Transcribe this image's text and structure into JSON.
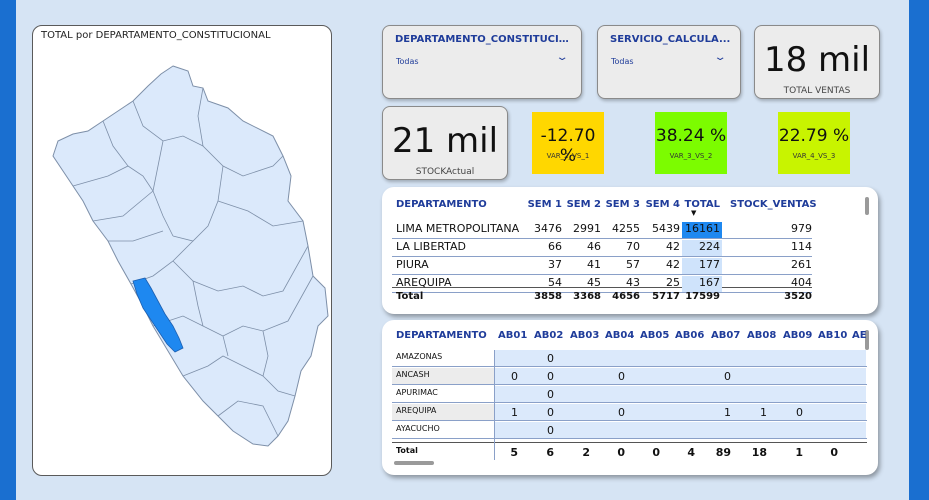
{
  "map": {
    "title": "TOTAL por DEPARTAMENTO_CONSTITUCIONAL",
    "base_fill": "#dbe9fb",
    "highlight_fill": "#1e88f0"
  },
  "slicers": [
    {
      "label": "DEPARTAMENTO_CONSTITUCIO...",
      "value": "Todas"
    },
    {
      "label": "SERVICIO_CALCULA...",
      "value": "Todas"
    }
  ],
  "kpis": {
    "total_ventas": {
      "value": "18 mil",
      "label": "TOTAL VENTAS"
    },
    "stock_actual": {
      "value": "21 mil",
      "label": "STOCKActual"
    }
  },
  "variations": [
    {
      "value": "-12.70 %",
      "label": "VAR_2_VS_1",
      "color": "#ffd700"
    },
    {
      "value": "38.24 %",
      "label": "VAR_3_VS_2",
      "color": "#7cfc00"
    },
    {
      "value": "22.79 %",
      "label": "VAR_4_VS_3",
      "color": "#c8f400"
    }
  ],
  "table1": {
    "headers": [
      "DEPARTAMENTO",
      "SEM 1",
      "SEM 2",
      "SEM 3",
      "SEM 4",
      "TOTAL",
      "STOCK_VENTAS"
    ],
    "rows": [
      [
        "LIMA METROPOLITANA",
        "3476",
        "2991",
        "4255",
        "5439",
        "16161",
        "979"
      ],
      [
        "LA LIBERTAD",
        "66",
        "46",
        "70",
        "42",
        "224",
        "114"
      ],
      [
        "PIURA",
        "37",
        "41",
        "57",
        "42",
        "177",
        "261"
      ],
      [
        "AREQUIPA",
        "54",
        "45",
        "43",
        "25",
        "167",
        "404"
      ]
    ],
    "total": [
      "Total",
      "3858",
      "3368",
      "4656",
      "5717",
      "17599",
      "3520"
    ]
  },
  "table2": {
    "headers": [
      "DEPARTAMENTO",
      "AB01",
      "AB02",
      "AB03",
      "AB04",
      "AB05",
      "AB06",
      "AB07",
      "AB08",
      "AB09",
      "AB10",
      "AE"
    ],
    "rows": [
      [
        "AMAZONAS",
        "",
        "0",
        "",
        "",
        "",
        "",
        "",
        "",
        "",
        "",
        ""
      ],
      [
        "ANCASH",
        "0",
        "0",
        "",
        "0",
        "",
        "",
        "0",
        "",
        "",
        "",
        ""
      ],
      [
        "APURIMAC",
        "",
        "0",
        "",
        "",
        "",
        "",
        "",
        "",
        "",
        "",
        ""
      ],
      [
        "AREQUIPA",
        "1",
        "0",
        "",
        "0",
        "",
        "",
        "1",
        "1",
        "0",
        "",
        ""
      ],
      [
        "AYACUCHO",
        "",
        "0",
        "",
        "",
        "",
        "",
        "",
        "",
        "",
        "",
        ""
      ]
    ],
    "total": [
      "Total",
      "5",
      "6",
      "2",
      "0",
      "0",
      "4",
      "89",
      "18",
      "1",
      "0",
      ""
    ]
  }
}
